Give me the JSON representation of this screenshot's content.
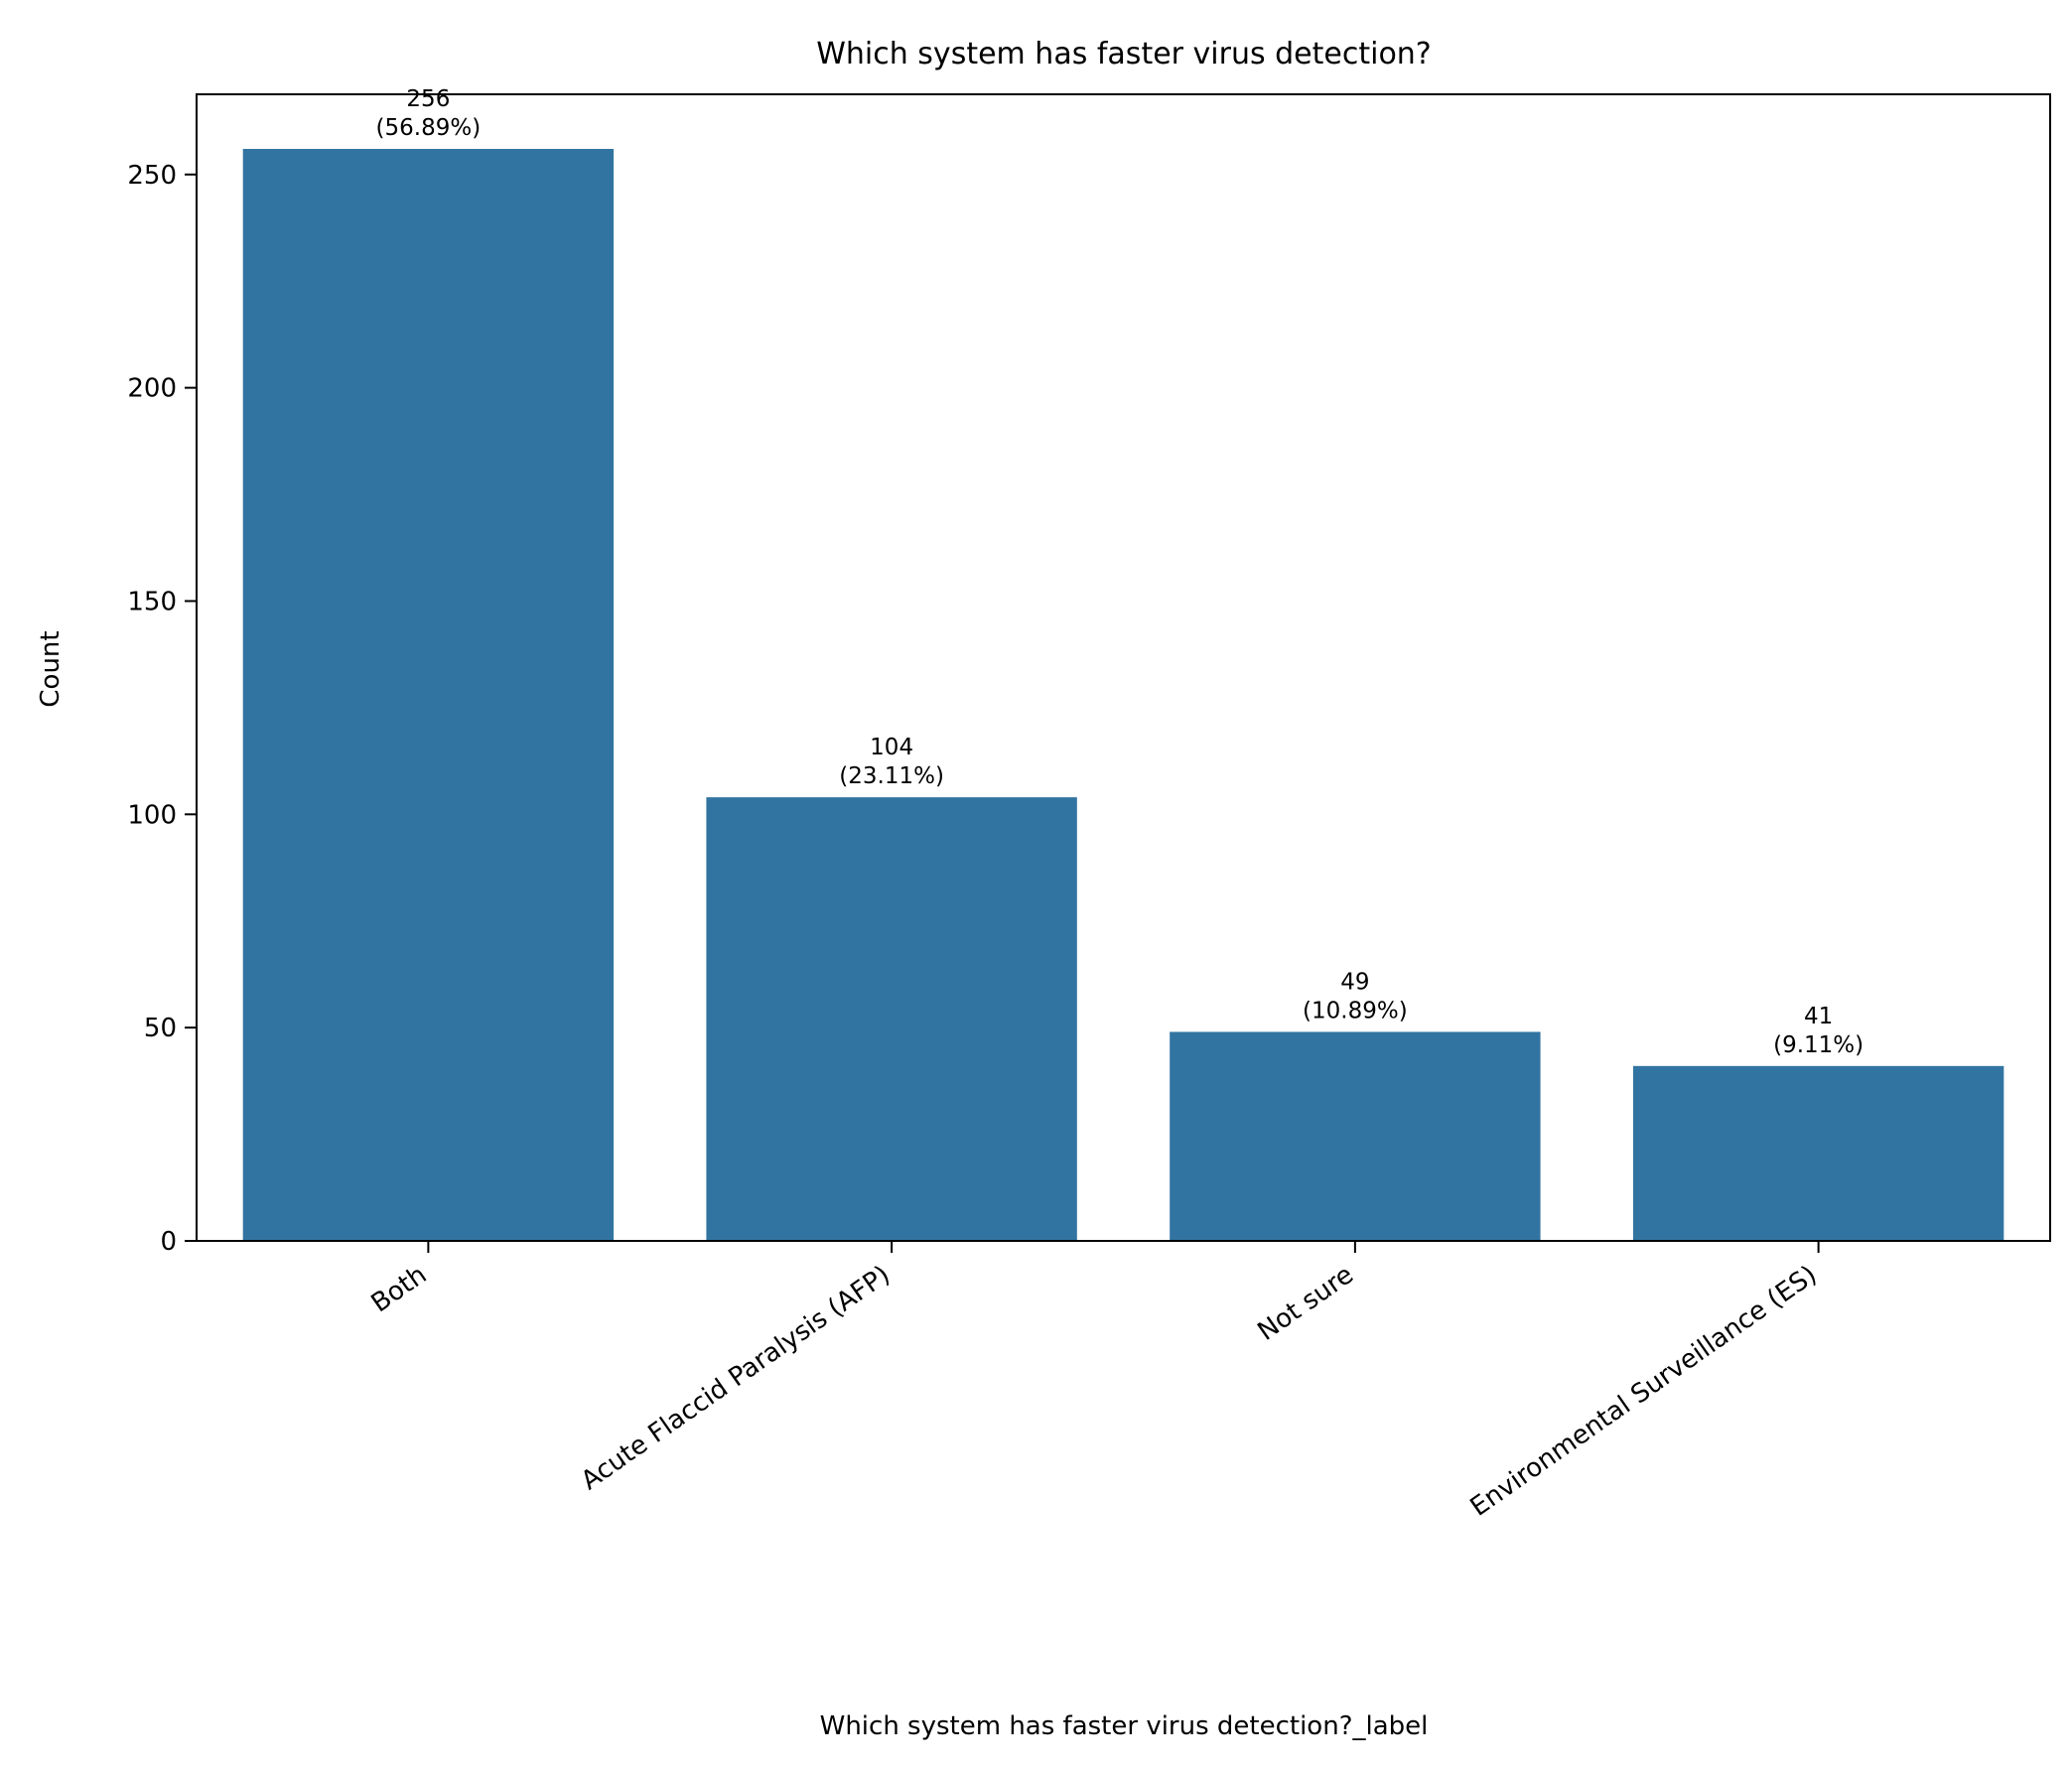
{
  "chart_data": {
    "type": "bar",
    "title": "Which system has faster virus detection?",
    "xlabel": "Which system has faster virus detection?_label",
    "ylabel": "Count",
    "categories": [
      "Both",
      "Acute Flaccid Paralysis (AFP)",
      "Not sure",
      "Environmental Surveillance (ES)"
    ],
    "values": [
      256,
      104,
      49,
      41
    ],
    "value_labels": [
      "256",
      "104",
      "49",
      "41"
    ],
    "percent_labels": [
      "(56.89%)",
      "(23.11%)",
      "(10.89%)",
      "(9.11%)"
    ],
    "ylim": [
      0,
      268.8
    ],
    "yticks": [
      0,
      50,
      100,
      150,
      200,
      250
    ],
    "grid": false,
    "bar_color": "#3274a1"
  }
}
